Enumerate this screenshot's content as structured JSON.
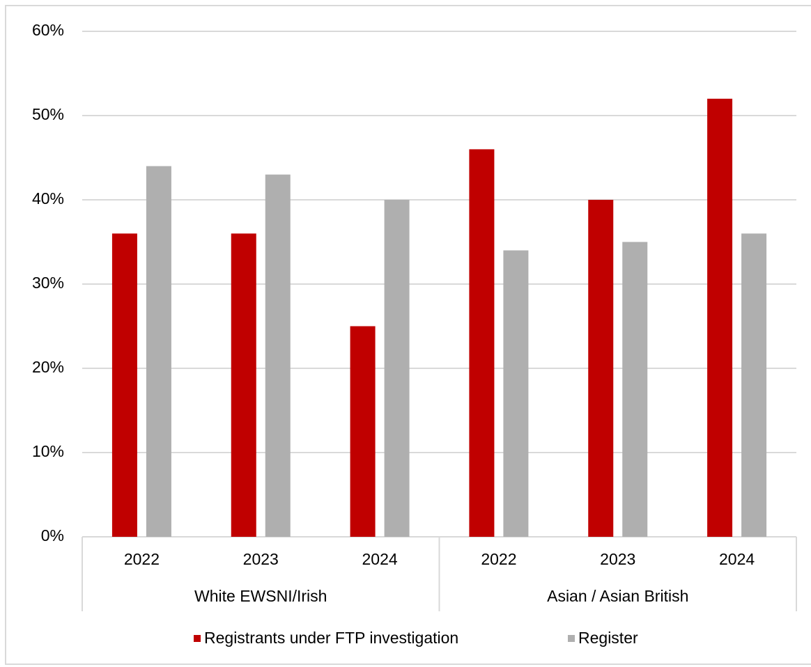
{
  "chart_data": {
    "type": "bar",
    "groups": [
      {
        "name": "White EWSNI/Irish",
        "categories": [
          "2022",
          "2023",
          "2024"
        ]
      },
      {
        "name": "Asian / Asian British",
        "categories": [
          "2022",
          "2023",
          "2024"
        ]
      }
    ],
    "series": [
      {
        "name": "Registrants under FTP investigation",
        "color": "#c00000",
        "values": [
          36,
          36,
          25,
          46,
          40,
          52
        ]
      },
      {
        "name": "Register",
        "color": "#afafaf",
        "values": [
          44,
          43,
          40,
          34,
          35,
          36
        ]
      }
    ],
    "ylim": [
      0,
      60
    ],
    "yticks": [
      {
        "value": 0,
        "label": "0%"
      },
      {
        "value": 10,
        "label": "10%"
      },
      {
        "value": 20,
        "label": "20%"
      },
      {
        "value": 30,
        "label": "30%"
      },
      {
        "value": 40,
        "label": "40%"
      },
      {
        "value": 50,
        "label": "50%"
      },
      {
        "value": 60,
        "label": "60%"
      }
    ],
    "grid": true,
    "legend": "bottom"
  }
}
